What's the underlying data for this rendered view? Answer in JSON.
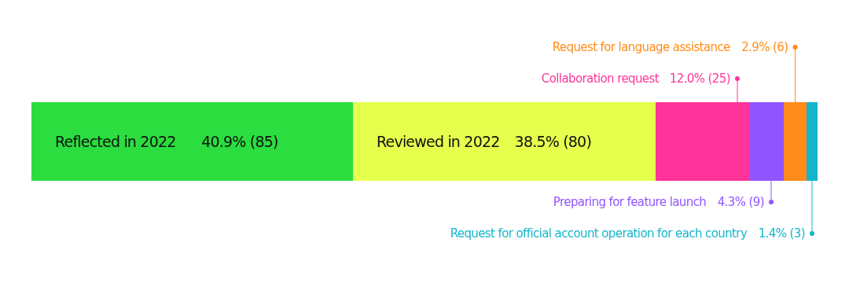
{
  "chart_data": {
    "type": "bar",
    "orientation": "horizontal",
    "stacked": true,
    "categories": [
      null
    ],
    "series": [
      {
        "name": "Reflected in 2022",
        "color": "#2bdd3f",
        "values": [
          40.9
        ],
        "value_labels": [
          "40.9% (85)"
        ]
      },
      {
        "name": "Reviewed in 2022",
        "color": "#e5ff4d",
        "values": [
          38.5
        ],
        "value_labels": [
          "38.5% (80)"
        ]
      },
      {
        "name": "Collaboration request",
        "color": "#ff3399",
        "values": [
          12.0
        ],
        "value_labels": [
          "12.0% (25)"
        ]
      },
      {
        "name": "Preparing for feature launch",
        "color": "#9055ff",
        "values": [
          4.3
        ],
        "value_labels": [
          "4.3% (9)"
        ]
      },
      {
        "name": "Request for language assistance",
        "color": "#ff8c1a",
        "values": [
          2.9
        ],
        "value_labels": [
          "2.9% (6)"
        ]
      },
      {
        "name": "Request for official account operation for each country",
        "color": "#13b5cc",
        "values": [
          1.4
        ],
        "value_labels": [
          "1.4% (3)"
        ]
      }
    ]
  }
}
